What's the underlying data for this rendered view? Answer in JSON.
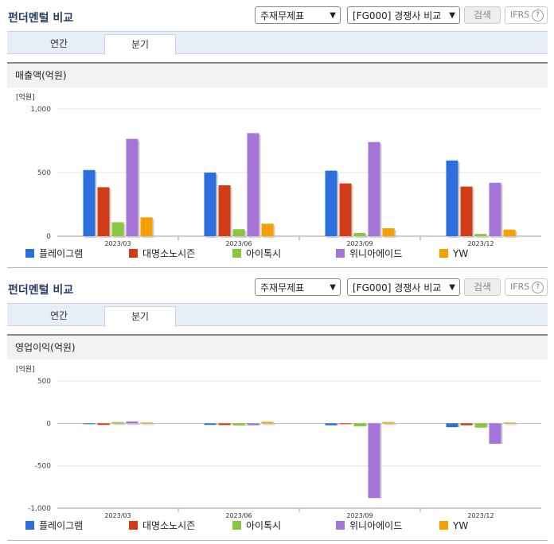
{
  "panels": [
    {
      "title": "펀더멘털 비교",
      "select1": "주재무제표",
      "select2": "[FG000] 경쟁사 비교",
      "search_label": "검색",
      "ifrs_label": "IFRS",
      "ifrs_help": "?",
      "tabs": [
        "연간",
        "분기"
      ],
      "active_tab": "분기",
      "section_title": "매출액(억원)"
    },
    {
      "title": "펀더멘털 비교",
      "select1": "주재무제표",
      "select2": "[FG000] 경쟁사 비교",
      "search_label": "검색",
      "ifrs_label": "IFRS",
      "ifrs_help": "?",
      "tabs": [
        "연간",
        "분기"
      ],
      "active_tab": "분기",
      "section_title": "영업이익(억원)"
    }
  ],
  "chart_data": [
    {
      "type": "bar",
      "unit_label": "[억원]",
      "categories": [
        "2023/03",
        "2023/06",
        "2023/09",
        "2023/12"
      ],
      "ylim": [
        0,
        1000
      ],
      "yticks": [
        0,
        500,
        1000
      ],
      "ytick_labels": [
        "0",
        "500",
        "1,000"
      ],
      "series": [
        {
          "name": "플레이그램",
          "color": "#2c6fdc",
          "values": [
            520,
            500,
            515,
            595
          ]
        },
        {
          "name": "대명소노시즌",
          "color": "#d23c17",
          "values": [
            385,
            400,
            415,
            390
          ]
        },
        {
          "name": "아이톡시",
          "color": "#8cc63f",
          "values": [
            110,
            55,
            25,
            18
          ]
        },
        {
          "name": "위니아에이드",
          "color": "#a574d8",
          "values": [
            765,
            810,
            740,
            420
          ]
        },
        {
          "name": "YW",
          "color": "#f5a000",
          "values": [
            148,
            98,
            62,
            52
          ]
        }
      ]
    },
    {
      "type": "bar",
      "unit_label": "[억원]",
      "categories": [
        "2023/03",
        "2023/06",
        "2023/09",
        "2023/12"
      ],
      "ylim": [
        -1000,
        500
      ],
      "yticks": [
        -1000,
        -500,
        0,
        500
      ],
      "ytick_labels": [
        "-1,000",
        "-500",
        "0",
        "500"
      ],
      "series": [
        {
          "name": "플레이그램",
          "color": "#2c6fdc",
          "values": [
            -6,
            -18,
            -22,
            -45
          ]
        },
        {
          "name": "대명소노시즌",
          "color": "#d23c17",
          "values": [
            -18,
            -20,
            -5,
            -22
          ]
        },
        {
          "name": "아이톡시",
          "color": "#8cc63f",
          "values": [
            15,
            -25,
            -35,
            -50
          ]
        },
        {
          "name": "위니아에이드",
          "color": "#a574d8",
          "values": [
            22,
            -22,
            -880,
            -240
          ]
        },
        {
          "name": "YW",
          "color": "#f5a000",
          "values": [
            10,
            18,
            15,
            10
          ]
        }
      ]
    }
  ]
}
